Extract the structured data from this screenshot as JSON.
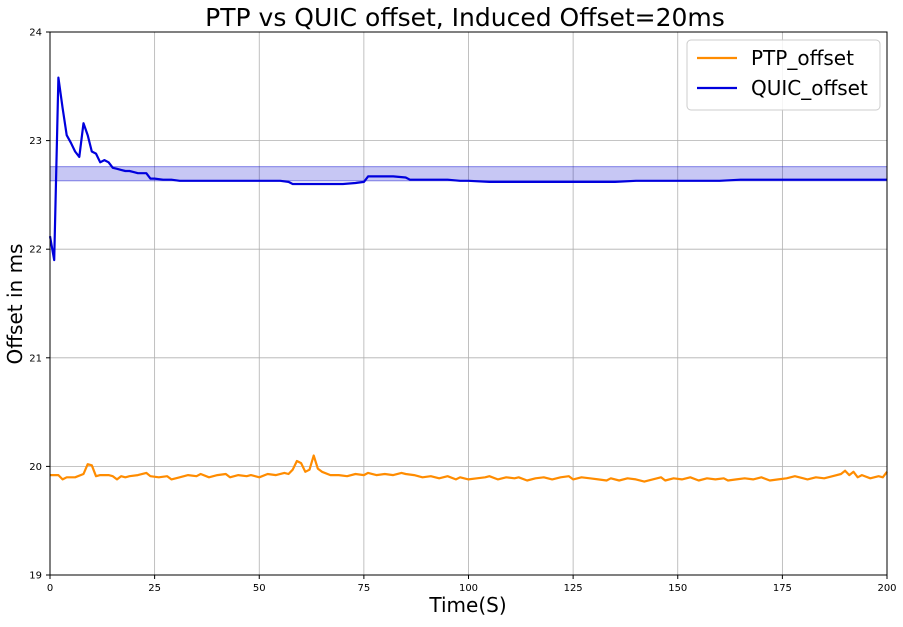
{
  "chart_data": {
    "type": "line",
    "title": "PTP vs QUIC offset, Induced Offset=20ms",
    "xlabel": "Time(S)",
    "ylabel": "Offset in ms",
    "xlim": [
      0,
      200
    ],
    "ylim": [
      19,
      24
    ],
    "xticks": [
      0,
      25,
      50,
      75,
      100,
      125,
      150,
      175,
      200
    ],
    "yticks": [
      19,
      20,
      21,
      22,
      23,
      24
    ],
    "grid": true,
    "legend_position": "top-right",
    "band": {
      "y0": 22.63,
      "y1": 22.76,
      "color": "#0000cc"
    },
    "series": [
      {
        "name": "PTP_offset",
        "color": "#ff8c00",
        "x": [
          0,
          2,
          3,
          4,
          6,
          8,
          9,
          10,
          11,
          12,
          14,
          15,
          16,
          17,
          18,
          19,
          21,
          23,
          24,
          26,
          28,
          29,
          31,
          33,
          35,
          36,
          38,
          40,
          42,
          43,
          45,
          47,
          48,
          50,
          52,
          54,
          56,
          57,
          58,
          59,
          60,
          61,
          62,
          63,
          64,
          65,
          67,
          69,
          71,
          73,
          75,
          76,
          78,
          80,
          82,
          84,
          85,
          87,
          89,
          91,
          93,
          95,
          97,
          98,
          100,
          102,
          104,
          105,
          107,
          109,
          111,
          112,
          114,
          116,
          118,
          120,
          122,
          124,
          125,
          127,
          129,
          131,
          133,
          134,
          136,
          138,
          140,
          142,
          144,
          146,
          147,
          149,
          151,
          153,
          155,
          157,
          159,
          161,
          162,
          164,
          166,
          168,
          170,
          172,
          174,
          176,
          178,
          180,
          181,
          183,
          185,
          187,
          189,
          190,
          191,
          192,
          193,
          194,
          196,
          198,
          199,
          200
        ],
        "y": [
          19.92,
          19.92,
          19.88,
          19.9,
          19.9,
          19.93,
          20.02,
          20.01,
          19.91,
          19.92,
          19.92,
          19.91,
          19.88,
          19.91,
          19.9,
          19.91,
          19.92,
          19.94,
          19.91,
          19.9,
          19.91,
          19.88,
          19.9,
          19.92,
          19.91,
          19.93,
          19.9,
          19.92,
          19.93,
          19.9,
          19.92,
          19.91,
          19.92,
          19.9,
          19.93,
          19.92,
          19.94,
          19.93,
          19.97,
          20.05,
          20.03,
          19.95,
          19.97,
          20.1,
          19.98,
          19.95,
          19.92,
          19.92,
          19.91,
          19.93,
          19.92,
          19.94,
          19.92,
          19.93,
          19.92,
          19.94,
          19.93,
          19.92,
          19.9,
          19.91,
          19.89,
          19.91,
          19.88,
          19.9,
          19.88,
          19.89,
          19.9,
          19.91,
          19.88,
          19.9,
          19.89,
          19.9,
          19.87,
          19.89,
          19.9,
          19.88,
          19.9,
          19.91,
          19.88,
          19.9,
          19.89,
          19.88,
          19.87,
          19.89,
          19.87,
          19.89,
          19.88,
          19.86,
          19.88,
          19.9,
          19.87,
          19.89,
          19.88,
          19.9,
          19.87,
          19.89,
          19.88,
          19.89,
          19.87,
          19.88,
          19.89,
          19.88,
          19.9,
          19.87,
          19.88,
          19.89,
          19.91,
          19.89,
          19.88,
          19.9,
          19.89,
          19.91,
          19.93,
          19.96,
          19.92,
          19.95,
          19.9,
          19.92,
          19.89,
          19.91,
          19.9,
          19.95
        ]
      },
      {
        "name": "QUIC_offset",
        "color": "#0000dd",
        "x": [
          0,
          1,
          2,
          3,
          4,
          5,
          6,
          7,
          8,
          9,
          10,
          11,
          12,
          13,
          14,
          15,
          16,
          17,
          18,
          19,
          20,
          21,
          22,
          23,
          24,
          25,
          27,
          29,
          31,
          33,
          35,
          38,
          42,
          45,
          48,
          52,
          55,
          57,
          58,
          60,
          63,
          66,
          70,
          73,
          75,
          76,
          78,
          82,
          85,
          86,
          88,
          92,
          95,
          98,
          100,
          105,
          110,
          115,
          120,
          125,
          130,
          135,
          140,
          145,
          150,
          155,
          160,
          165,
          170,
          175,
          180,
          185,
          190,
          195,
          200
        ],
        "y": [
          22.12,
          21.9,
          23.58,
          23.3,
          23.05,
          22.98,
          22.9,
          22.85,
          23.16,
          23.05,
          22.9,
          22.88,
          22.8,
          22.82,
          22.8,
          22.75,
          22.74,
          22.73,
          22.72,
          22.72,
          22.71,
          22.7,
          22.7,
          22.7,
          22.65,
          22.65,
          22.64,
          22.64,
          22.63,
          22.63,
          22.63,
          22.63,
          22.63,
          22.63,
          22.63,
          22.63,
          22.63,
          22.62,
          22.6,
          22.6,
          22.6,
          22.6,
          22.6,
          22.61,
          22.62,
          22.67,
          22.67,
          22.67,
          22.66,
          22.64,
          22.64,
          22.64,
          22.64,
          22.63,
          22.63,
          22.62,
          22.62,
          22.62,
          22.62,
          22.62,
          22.62,
          22.62,
          22.63,
          22.63,
          22.63,
          22.63,
          22.63,
          22.64,
          22.64,
          22.64,
          22.64,
          22.64,
          22.64,
          22.64,
          22.64
        ]
      }
    ]
  }
}
